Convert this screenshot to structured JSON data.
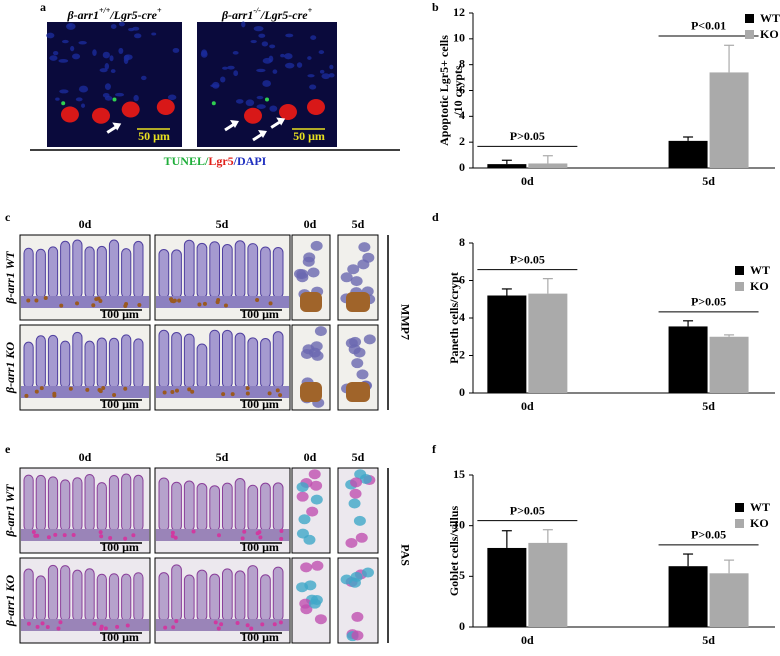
{
  "panels": {
    "letters": [
      "a",
      "b",
      "c",
      "d",
      "e",
      "f"
    ],
    "a": {
      "images": [
        {
          "title": [
            "β-arr1",
            "+/+",
            "/Lgr5-cre",
            "+"
          ],
          "scale": "50 μm"
        },
        {
          "title": [
            "β-arr1",
            "-/-",
            "/Lgr5-cre",
            "+"
          ],
          "scale": "50 μm"
        }
      ],
      "stain": [
        {
          "text": "TUNEL",
          "color": "#1fae3a"
        },
        {
          "text": "/",
          "color": "#1fae3a"
        },
        {
          "text": "Lgr5",
          "color": "#e0201a"
        },
        {
          "text": "/",
          "color": "#2030c0"
        },
        {
          "text": "DAPI",
          "color": "#2030c0"
        }
      ]
    },
    "c": {
      "columns": [
        "0d",
        "5d",
        "0d",
        "5d"
      ],
      "rows": [
        "β-arr1 WT",
        "β-arr1 KO"
      ],
      "scale": "100 μm",
      "stain": "MMP7"
    },
    "e": {
      "columns": [
        "0d",
        "5d",
        "0d",
        "5d"
      ],
      "rows": [
        "β-arr1 WT",
        "β-arr1 KO"
      ],
      "scale": "100 μm",
      "stain": "PAS"
    }
  },
  "chart_data": [
    {
      "type": "bar",
      "ylabel": [
        "Apoptotic Lgr5+ cells",
        "/10 crypts"
      ],
      "categories": [
        "0d",
        "5d"
      ],
      "series": [
        {
          "name": "WT",
          "color": "#000000",
          "values": [
            0.3,
            2.1
          ],
          "errors": [
            0.3,
            0.3
          ]
        },
        {
          "name": "KO",
          "color": "#aaaaaa",
          "values": [
            0.35,
            7.4
          ],
          "errors": [
            0.6,
            2.1
          ]
        }
      ],
      "annotations": [
        "P>0.05",
        "P<0.01"
      ],
      "ylim": [
        0,
        12
      ],
      "yticks": [
        0,
        2,
        4,
        6,
        8,
        10,
        12
      ]
    },
    {
      "type": "bar",
      "ylabel": [
        "Paneth cells/crypt"
      ],
      "categories": [
        "0d",
        "5d"
      ],
      "series": [
        {
          "name": "WT",
          "color": "#000000",
          "values": [
            5.2,
            3.55
          ],
          "errors": [
            0.35,
            0.3
          ]
        },
        {
          "name": "KO",
          "color": "#aaaaaa",
          "values": [
            5.3,
            3.0
          ],
          "errors": [
            0.8,
            0.1
          ]
        }
      ],
      "annotations": [
        "P>0.05",
        "P>0.05"
      ],
      "ylim": [
        0,
        8
      ],
      "yticks": [
        0,
        2,
        4,
        6,
        8
      ]
    },
    {
      "type": "bar",
      "ylabel": [
        "Goblet cells/villus"
      ],
      "categories": [
        "0d",
        "5d"
      ],
      "series": [
        {
          "name": "WT",
          "color": "#000000",
          "values": [
            7.8,
            6.0
          ],
          "errors": [
            1.7,
            1.2
          ]
        },
        {
          "name": "KO",
          "color": "#aaaaaa",
          "values": [
            8.3,
            5.3
          ],
          "errors": [
            1.3,
            1.3
          ]
        }
      ],
      "annotations": [
        "P>0.05",
        "P>0.05"
      ],
      "ylim": [
        0,
        15
      ],
      "yticks": [
        0,
        5,
        10,
        15
      ]
    }
  ]
}
